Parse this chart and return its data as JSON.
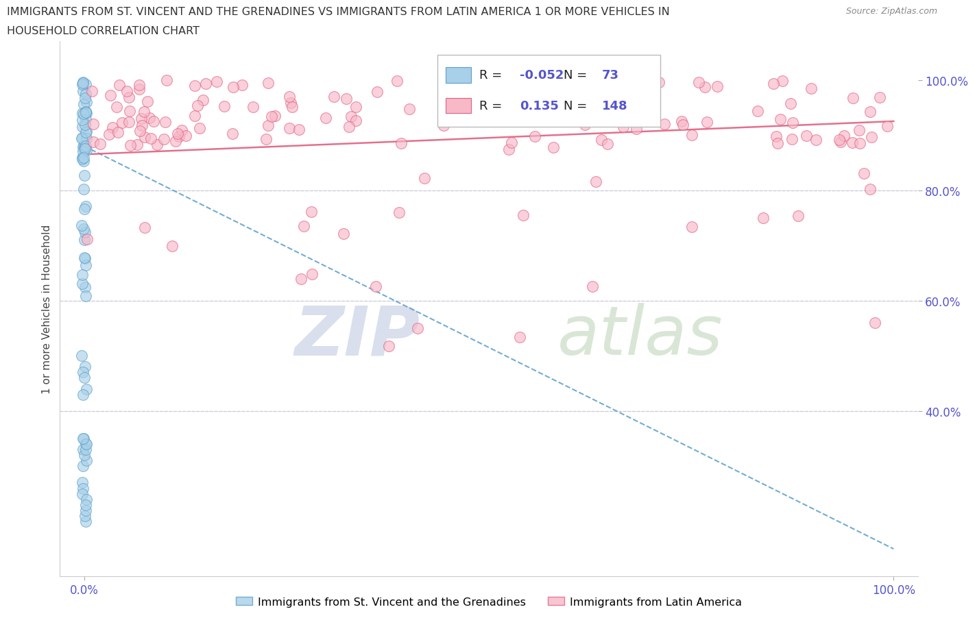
{
  "title_line1": "IMMIGRANTS FROM ST. VINCENT AND THE GRENADINES VS IMMIGRANTS FROM LATIN AMERICA 1 OR MORE VEHICLES IN",
  "title_line2": "HOUSEHOLD CORRELATION CHART",
  "source_text": "Source: ZipAtlas.com",
  "ylabel": "1 or more Vehicles in Household",
  "blue_label": "Immigrants from St. Vincent and the Grenadines",
  "pink_label": "Immigrants from Latin America",
  "R_blue": -0.052,
  "N_blue": 73,
  "R_pink": 0.135,
  "N_pink": 148,
  "blue_color": "#a8d0e8",
  "blue_edge_color": "#5b9ec9",
  "pink_color": "#f7b8c8",
  "pink_edge_color": "#e06080",
  "blue_trend_color": "#5b9ec9",
  "pink_trend_color": "#e06080",
  "tick_label_color": "#5555cc",
  "grid_color": "#c8c8dc",
  "watermark_zip_color": "#d0d8e8",
  "watermark_atlas_color": "#d0e0cc",
  "blue_trend_start_y": 88.0,
  "blue_trend_end_y": 15.0,
  "pink_trend_start_y": 86.5,
  "pink_trend_end_y": 92.5,
  "ytick_positions": [
    40,
    60,
    80,
    100
  ],
  "ytick_labels": [
    "40.0%",
    "60.0%",
    "80.0%",
    "100.0%"
  ],
  "xtick_positions": [
    0,
    100
  ],
  "xtick_labels": [
    "0.0%",
    "100.0%"
  ]
}
